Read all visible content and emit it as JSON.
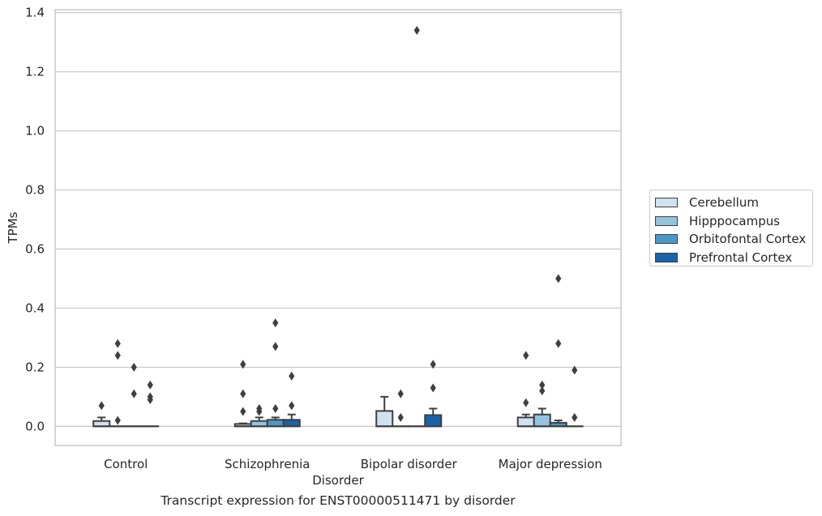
{
  "chart_data": {
    "type": "box",
    "categories": [
      "Control",
      "Schizophrenia",
      "Bipolar disorder",
      "Major depression"
    ],
    "hue_order": [
      "Cerebellum",
      "Hipppocampus",
      "Orbitofontal Cortex",
      "Prefrontal Cortex"
    ],
    "colors": [
      "#d0e1f2",
      "#94c4df",
      "#4a98c9",
      "#1764ab"
    ],
    "xlabel": "Disorder",
    "ylabel": "TPMs",
    "caption": "Transcript expression for ENST00000511471 by disorder",
    "ylim": [
      -0.065,
      1.41
    ],
    "yticks": [
      "0.0",
      "0.2",
      "0.4",
      "0.6",
      "0.8",
      "1.0",
      "1.2",
      "1.4"
    ],
    "grid": true,
    "legend_position": "outside right",
    "boxes": [
      {
        "category": "Control",
        "hue": "Cerebellum",
        "q1": 0.0,
        "median": 0.0,
        "q3": 0.018,
        "whisker_low": 0.0,
        "whisker_high": 0.03,
        "outliers": [
          0.07
        ]
      },
      {
        "category": "Control",
        "hue": "Hipppocampus",
        "q1": 0.0,
        "median": 0.0,
        "q3": 0.0,
        "whisker_low": 0.0,
        "whisker_high": 0.0,
        "outliers": [
          0.02,
          0.24,
          0.28
        ]
      },
      {
        "category": "Control",
        "hue": "Orbitofontal Cortex",
        "q1": 0.0,
        "median": 0.0,
        "q3": 0.0,
        "whisker_low": 0.0,
        "whisker_high": 0.0,
        "outliers": [
          0.11,
          0.2
        ]
      },
      {
        "category": "Control",
        "hue": "Prefrontal Cortex",
        "q1": 0.0,
        "median": 0.0,
        "q3": 0.0,
        "whisker_low": 0.0,
        "whisker_high": 0.0,
        "outliers": [
          0.09,
          0.1,
          0.14
        ]
      },
      {
        "category": "Schizophrenia",
        "hue": "Cerebellum",
        "q1": 0.0,
        "median": 0.0,
        "q3": 0.008,
        "whisker_low": 0.0,
        "whisker_high": 0.01,
        "outliers": [
          0.05,
          0.11,
          0.21
        ]
      },
      {
        "category": "Schizophrenia",
        "hue": "Hipppocampus",
        "q1": 0.0,
        "median": 0.0,
        "q3": 0.018,
        "whisker_low": 0.0,
        "whisker_high": 0.03,
        "outliers": [
          0.05,
          0.06
        ]
      },
      {
        "category": "Schizophrenia",
        "hue": "Orbitofontal Cortex",
        "q1": 0.0,
        "median": 0.0,
        "q3": 0.022,
        "whisker_low": 0.0,
        "whisker_high": 0.03,
        "outliers": [
          0.06,
          0.27,
          0.35
        ]
      },
      {
        "category": "Schizophrenia",
        "hue": "Prefrontal Cortex",
        "q1": 0.0,
        "median": 0.0,
        "q3": 0.022,
        "whisker_low": 0.0,
        "whisker_high": 0.04,
        "outliers": [
          0.07,
          0.17
        ]
      },
      {
        "category": "Bipolar disorder",
        "hue": "Cerebellum",
        "q1": 0.0,
        "median": 0.0,
        "q3": 0.052,
        "whisker_low": 0.0,
        "whisker_high": 0.1,
        "outliers": []
      },
      {
        "category": "Bipolar disorder",
        "hue": "Hipppocampus",
        "q1": 0.0,
        "median": 0.0,
        "q3": 0.0,
        "whisker_low": 0.0,
        "whisker_high": 0.0,
        "outliers": [
          0.03,
          0.11
        ]
      },
      {
        "category": "Bipolar disorder",
        "hue": "Orbitofontal Cortex",
        "q1": 0.0,
        "median": 0.0,
        "q3": 0.0,
        "whisker_low": 0.0,
        "whisker_high": 0.0,
        "outliers": [
          1.34
        ]
      },
      {
        "category": "Bipolar disorder",
        "hue": "Prefrontal Cortex",
        "q1": 0.0,
        "median": 0.0,
        "q3": 0.038,
        "whisker_low": 0.0,
        "whisker_high": 0.06,
        "outliers": [
          0.13,
          0.21
        ]
      },
      {
        "category": "Major depression",
        "hue": "Cerebellum",
        "q1": 0.0,
        "median": 0.0,
        "q3": 0.03,
        "whisker_low": 0.0,
        "whisker_high": 0.04,
        "outliers": [
          0.08,
          0.24
        ]
      },
      {
        "category": "Major depression",
        "hue": "Hipppocampus",
        "q1": 0.0,
        "median": 0.0,
        "q3": 0.04,
        "whisker_low": 0.0,
        "whisker_high": 0.06,
        "outliers": [
          0.12,
          0.14
        ]
      },
      {
        "category": "Major depression",
        "hue": "Orbitofontal Cortex",
        "q1": 0.0,
        "median": 0.0,
        "q3": 0.012,
        "whisker_low": 0.0,
        "whisker_high": 0.02,
        "outliers": [
          0.28,
          0.5
        ]
      },
      {
        "category": "Major depression",
        "hue": "Prefrontal Cortex",
        "q1": 0.0,
        "median": 0.0,
        "q3": 0.0,
        "whisker_low": 0.0,
        "whisker_high": 0.0,
        "outliers": [
          0.03,
          0.19
        ]
      }
    ]
  }
}
